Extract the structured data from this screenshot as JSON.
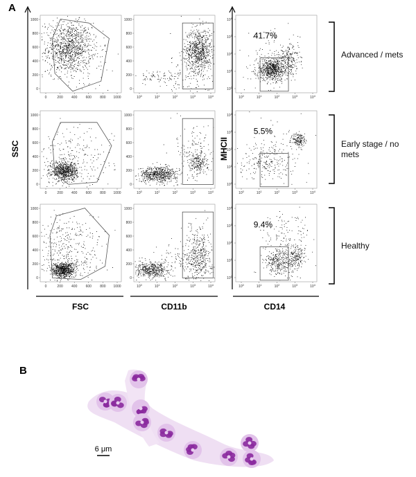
{
  "figure": {
    "panel_labels": [
      "A",
      "B"
    ],
    "y_axis_labels": [
      "SSC",
      "MHCII"
    ],
    "x_axis_labels": [
      "FSC",
      "CD11b",
      "CD14"
    ],
    "linear_ticks": [
      "0",
      "200",
      "400",
      "600",
      "800",
      "1000"
    ],
    "log_tick_base": "10",
    "log_tick_exponents": [
      "0",
      "1",
      "2",
      "3",
      "4"
    ],
    "rows": [
      {
        "label": "Advanced / mets",
        "percent": "41.7%"
      },
      {
        "label": "Early stage / no mets",
        "percent": "5.5%"
      },
      {
        "label": "Healthy",
        "percent": "9.4%"
      }
    ],
    "scale_bar": "6 μm"
  }
}
